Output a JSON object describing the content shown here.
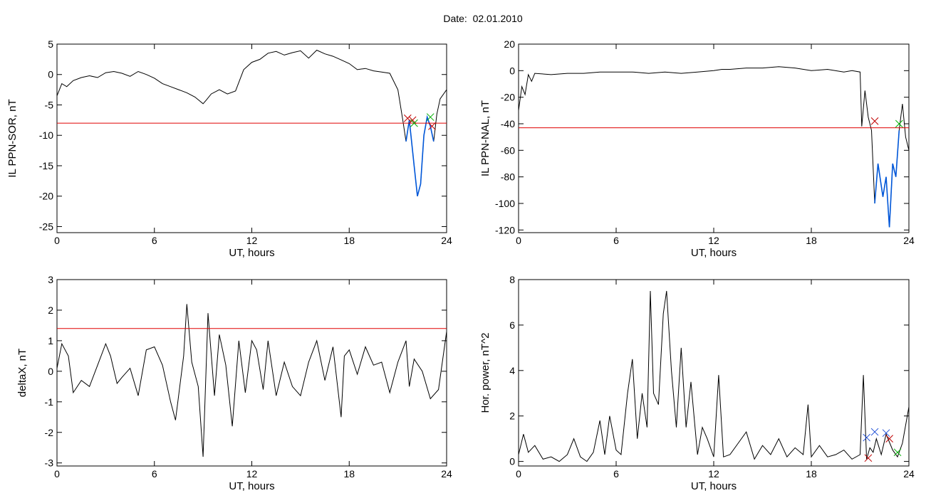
{
  "title": "Date:  02.01.2010",
  "colors": {
    "data": "#000000",
    "threshold": "#e00000",
    "segment": "#0057d9",
    "marker_red": "#c00000",
    "marker_green": "#00b000",
    "marker_blue": "#1f4fd6"
  },
  "chart_data": [
    {
      "type": "line",
      "id": "sor",
      "xlabel": "UT, hours",
      "ylabel": "IL PPN-SOR, nT",
      "xlim": [
        0,
        24
      ],
      "ylim": [
        -26,
        5
      ],
      "xticks": [
        0,
        6,
        12,
        18,
        24
      ],
      "yticks": [
        -25,
        -20,
        -15,
        -10,
        -5,
        0,
        5
      ],
      "threshold": -8.0,
      "series": [
        {
          "x": [
            0,
            0.3,
            0.6,
            1,
            1.5,
            2,
            2.5,
            3,
            3.5,
            4,
            4.5,
            5,
            5.5,
            6,
            6.5,
            7,
            7.5,
            8,
            8.5,
            9,
            9.2,
            9.5,
            10,
            10.5,
            11,
            11.5,
            12,
            12.5,
            13,
            13.5,
            14,
            14.5,
            15,
            15.5,
            16,
            16.5,
            17,
            17.5,
            18,
            18.5,
            19,
            19.5,
            20,
            20.5,
            21,
            21.3,
            21.5,
            21.7,
            21.8,
            22,
            22.2,
            22.4,
            22.6,
            22.8,
            23,
            23.2,
            23.4,
            23.6,
            24
          ],
          "y": [
            -3.5,
            -1.5,
            -2.0,
            -1.0,
            -0.5,
            -0.2,
            -0.5,
            0.3,
            0.5,
            0.2,
            -0.3,
            0.5,
            0.0,
            -0.6,
            -1.5,
            -2.0,
            -2.5,
            -3.0,
            -3.7,
            -4.8,
            -4.2,
            -3.2,
            -2.5,
            -3.2,
            -2.7,
            0.8,
            2.0,
            2.5,
            3.5,
            3.8,
            3.2,
            3.6,
            3.9,
            2.7,
            4.0,
            3.4,
            3.0,
            2.4,
            1.8,
            0.8,
            1.0,
            0.6,
            0.4,
            0.2,
            -2.5,
            -7.5,
            -11.0,
            -7.5,
            -10.0,
            -15.0,
            -20.0,
            -18.0,
            -10.0,
            -7.0,
            -8.5,
            -11.0,
            -6.5,
            -4.0,
            -2.5
          ]
        }
      ],
      "segments": [
        {
          "x": [
            21.4,
            23.3
          ]
        }
      ],
      "markers": [
        {
          "x": 21.6,
          "y": -7.2,
          "color": "red"
        },
        {
          "x": 21.9,
          "y": -7.5,
          "color": "red"
        },
        {
          "x": 22.0,
          "y": -8.0,
          "color": "green"
        },
        {
          "x": 23.0,
          "y": -7.0,
          "color": "green"
        },
        {
          "x": 23.1,
          "y": -8.5,
          "color": "red"
        }
      ]
    },
    {
      "type": "line",
      "id": "nal",
      "xlabel": "UT, hours",
      "ylabel": "IL PPN-NAL, nT",
      "xlim": [
        0,
        24
      ],
      "ylim": [
        -122,
        20
      ],
      "xticks": [
        0,
        6,
        12,
        18,
        24
      ],
      "yticks": [
        -120,
        -100,
        -80,
        -60,
        -40,
        -20,
        0,
        20
      ],
      "threshold": -43,
      "series": [
        {
          "x": [
            0,
            0.2,
            0.4,
            0.6,
            0.8,
            1,
            2,
            3,
            4,
            5,
            6,
            7,
            8,
            9,
            10,
            11,
            12,
            12.5,
            13,
            14,
            15,
            16,
            17,
            18,
            19,
            20,
            20.5,
            21,
            21.1,
            21.3,
            21.5,
            21.7,
            21.9,
            22.1,
            22.4,
            22.6,
            22.8,
            23,
            23.2,
            23.4,
            23.6,
            23.8,
            24
          ],
          "y": [
            -30,
            -12,
            -18,
            -3,
            -8,
            -2,
            -3,
            -2,
            -2,
            -1,
            -1,
            -1,
            -2,
            -1,
            -2,
            -1,
            0,
            1,
            1,
            2,
            2,
            3,
            2,
            0,
            1,
            -1,
            0,
            -1,
            -42,
            -15,
            -35,
            -45,
            -100,
            -70,
            -95,
            -80,
            -118,
            -70,
            -80,
            -45,
            -25,
            -50,
            -60
          ]
        }
      ],
      "segments": [
        {
          "x": [
            21.8,
            23.4
          ]
        }
      ],
      "markers": [
        {
          "x": 21.9,
          "y": -38,
          "color": "red"
        },
        {
          "x": 23.4,
          "y": -40,
          "color": "green"
        }
      ]
    },
    {
      "type": "line",
      "id": "deltax",
      "xlabel": "UT, hours",
      "ylabel": "deltaX, nT",
      "xlim": [
        0,
        24
      ],
      "ylim": [
        -3.1,
        3
      ],
      "xticks": [
        0,
        6,
        12,
        18,
        24
      ],
      "yticks": [
        -3,
        -2,
        -1,
        0,
        1,
        2,
        3
      ],
      "threshold": 1.4,
      "series": [
        {
          "x": [
            0,
            0.3,
            0.7,
            1,
            1.5,
            2,
            2.5,
            3,
            3.3,
            3.7,
            4,
            4.5,
            5,
            5.5,
            6,
            6.5,
            7,
            7.3,
            7.8,
            8,
            8.3,
            8.7,
            9,
            9.3,
            9.7,
            10,
            10.4,
            10.8,
            11.2,
            11.6,
            12,
            12.3,
            12.7,
            13,
            13.5,
            14,
            14.5,
            15,
            15.5,
            16,
            16.5,
            17,
            17.5,
            17.7,
            18,
            18.5,
            19,
            19.5,
            20,
            20.5,
            21,
            21.5,
            21.7,
            22,
            22.5,
            23,
            23.5,
            24
          ],
          "y": [
            0.1,
            0.9,
            0.5,
            -0.7,
            -0.3,
            -0.5,
            0.2,
            0.9,
            0.5,
            -0.4,
            -0.2,
            0.1,
            -0.8,
            0.7,
            0.8,
            0.2,
            -1.0,
            -1.6,
            0.5,
            2.2,
            0.3,
            -0.5,
            -2.8,
            1.9,
            -0.8,
            1.2,
            0.2,
            -1.8,
            1.0,
            -0.7,
            1.0,
            0.7,
            -0.6,
            1.0,
            -0.8,
            0.3,
            -0.5,
            -0.8,
            0.3,
            1.0,
            -0.3,
            0.8,
            -1.5,
            0.5,
            0.7,
            -0.1,
            0.8,
            0.2,
            0.3,
            -0.7,
            0.3,
            1.0,
            -0.5,
            0.4,
            0.0,
            -0.9,
            -0.6,
            1.3
          ]
        }
      ],
      "segments": [],
      "markers": []
    },
    {
      "type": "line",
      "id": "power",
      "xlabel": "UT, hours",
      "ylabel": "Hor. power, nT^2",
      "xlim": [
        0,
        24
      ],
      "ylim": [
        -0.2,
        8
      ],
      "xticks": [
        0,
        6,
        12,
        18,
        24
      ],
      "yticks": [
        0,
        2,
        4,
        6,
        8
      ],
      "threshold": null,
      "series": [
        {
          "x": [
            0,
            0.3,
            0.6,
            1,
            1.5,
            2,
            2.5,
            3,
            3.4,
            3.8,
            4.2,
            4.6,
            5,
            5.3,
            5.6,
            6,
            6.3,
            6.7,
            7,
            7.3,
            7.6,
            7.9,
            8.1,
            8.3,
            8.6,
            8.9,
            9.1,
            9.4,
            9.7,
            10,
            10.3,
            10.6,
            11,
            11.3,
            11.6,
            12,
            12.3,
            12.6,
            13,
            13.5,
            14,
            14.5,
            15,
            15.5,
            16,
            16.5,
            17,
            17.5,
            17.8,
            18,
            18.5,
            19,
            19.5,
            20,
            20.5,
            21,
            21.2,
            21.4,
            21.6,
            21.8,
            22,
            22.3,
            22.6,
            23,
            23.3,
            23.6,
            24
          ],
          "y": [
            0.3,
            1.2,
            0.4,
            0.7,
            0.1,
            0.2,
            0.0,
            0.3,
            1.0,
            0.2,
            0.0,
            0.4,
            1.8,
            0.3,
            2.0,
            0.5,
            0.3,
            3.0,
            4.5,
            1.0,
            3.0,
            1.5,
            7.5,
            3.0,
            2.5,
            6.5,
            7.5,
            4.0,
            1.5,
            5.0,
            1.5,
            3.5,
            0.3,
            1.5,
            1.0,
            0.2,
            3.8,
            0.2,
            0.3,
            0.8,
            1.3,
            0.1,
            0.7,
            0.3,
            1.0,
            0.2,
            0.6,
            0.3,
            2.5,
            0.2,
            0.7,
            0.2,
            0.3,
            0.5,
            0.1,
            0.3,
            3.8,
            0.1,
            0.6,
            0.4,
            1.0,
            0.3,
            1.2,
            0.5,
            0.2,
            0.8,
            2.4
          ]
        }
      ],
      "segments": [],
      "markers": [
        {
          "x": 21.4,
          "y": 1.05,
          "color": "blue"
        },
        {
          "x": 21.9,
          "y": 1.3,
          "color": "blue"
        },
        {
          "x": 22.6,
          "y": 1.25,
          "color": "blue"
        },
        {
          "x": 21.5,
          "y": 0.15,
          "color": "red"
        },
        {
          "x": 22.8,
          "y": 1.0,
          "color": "red"
        },
        {
          "x": 23.3,
          "y": 0.4,
          "color": "green"
        }
      ]
    }
  ]
}
